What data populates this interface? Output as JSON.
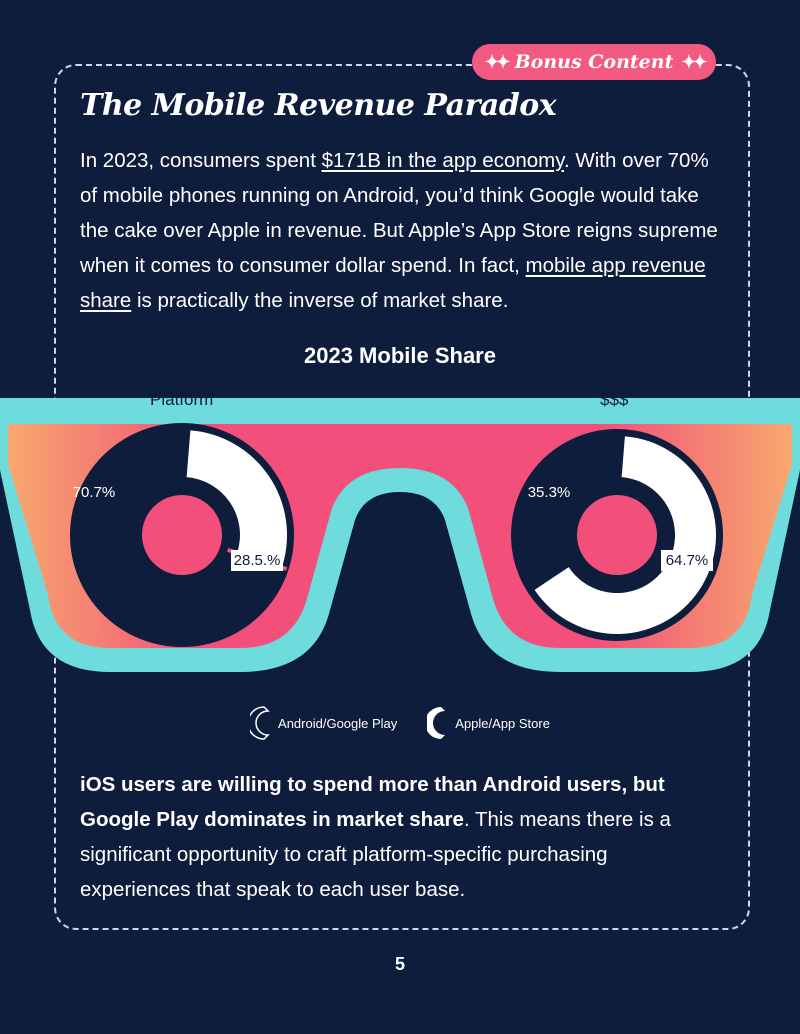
{
  "badge": {
    "label": "Bonus Content",
    "icon": "sparkle-icon"
  },
  "title": "The Mobile Revenue Paradox",
  "intro": {
    "part1": "In 2023, consumers spent ",
    "link1": "$171B in the app economy",
    "part2": ". With over 70% of mobile phones running on Android, you’d think Google would take the cake over Apple in revenue. But Apple’s App Store reigns supreme when it comes to consumer dollar spend. In fact, ",
    "link2": "mobile app revenue share",
    "part3": " is practically the inverse of market share."
  },
  "chart_data": {
    "type": "pie",
    "title": "2023 Mobile Share",
    "charts": [
      {
        "name": "Platform",
        "slices": [
          {
            "label": "Android/Google Play",
            "value": 70.7,
            "display": "70.7%"
          },
          {
            "label": "Apple/App Store",
            "value": 28.5,
            "display": "28.5.%"
          }
        ]
      },
      {
        "name": "$$$",
        "slices": [
          {
            "label": "Android/Google Play",
            "value": 35.3,
            "display": "35.3%"
          },
          {
            "label": "Apple/App Store",
            "value": 64.7,
            "display": "64.7%"
          }
        ]
      }
    ],
    "legend": [
      "Android/Google Play",
      "Apple/App Store"
    ],
    "colors": {
      "android": "#0f1d3d",
      "apple": "#ffffff",
      "frame": "#6edcdc",
      "lens_start": "#f7a86e",
      "lens_mid": "#f24f7a"
    }
  },
  "bottom": {
    "bold": "iOS users are willing to spend more than Android users, but Google Play dominates in market share",
    "rest": ". This means there is a significant opportunity to craft platform-specific purchasing experiences that speak to each user base."
  },
  "page_number": "5"
}
